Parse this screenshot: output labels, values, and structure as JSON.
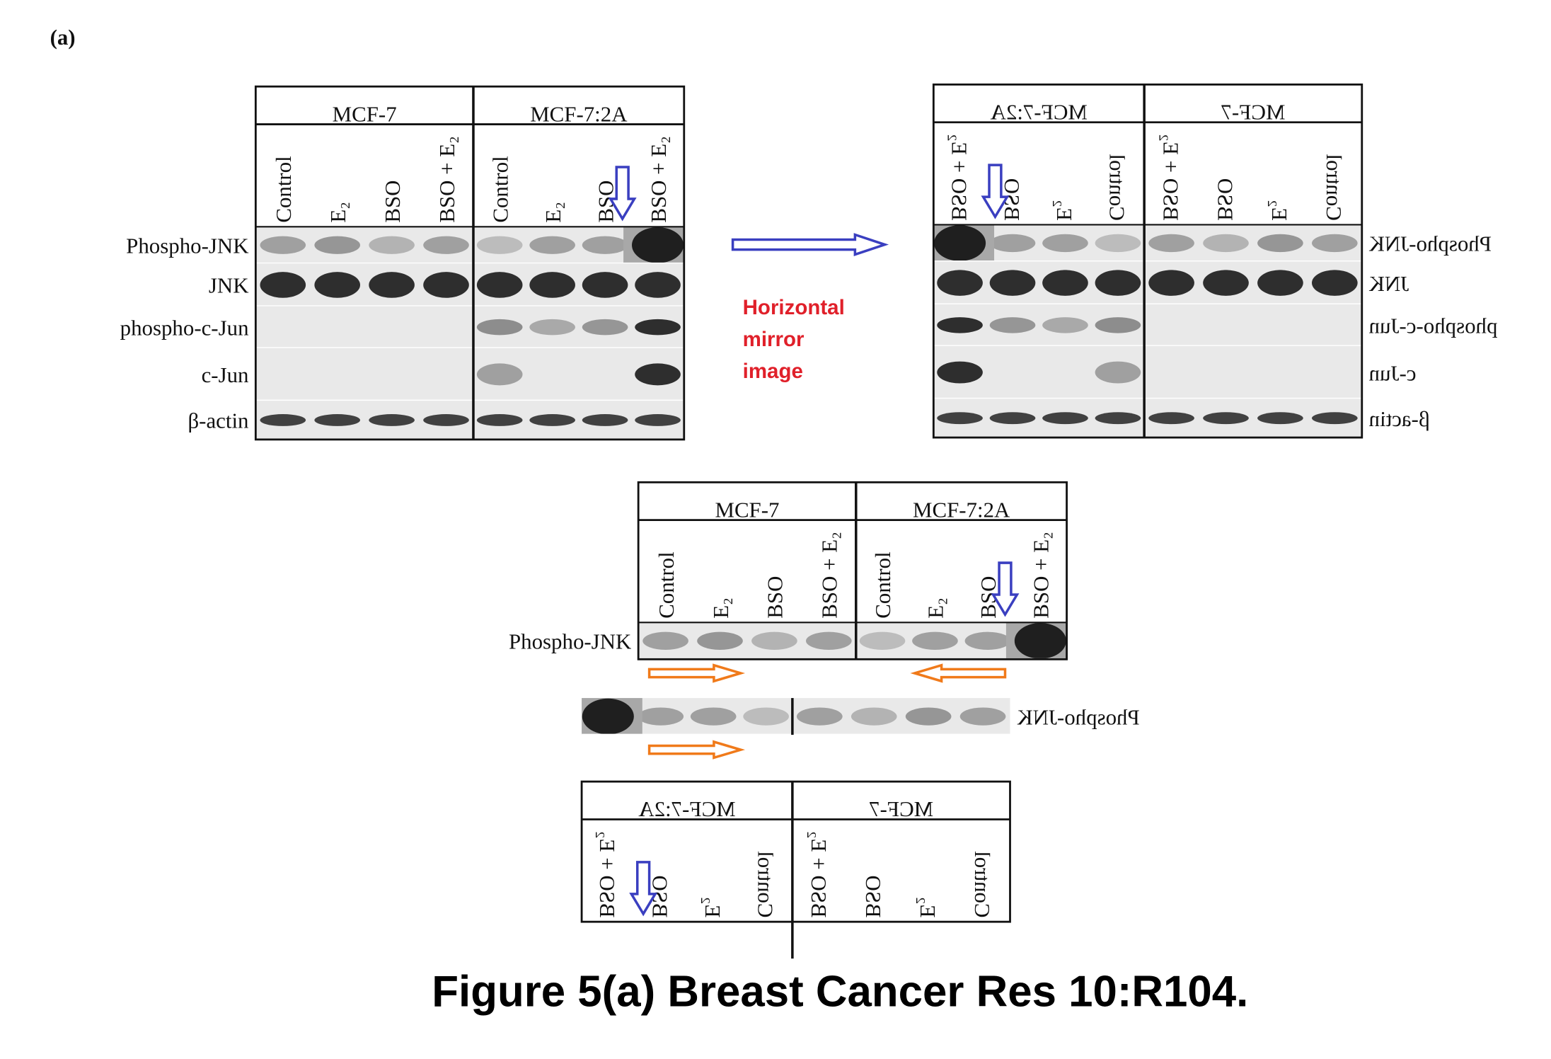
{
  "figure_label": "(a)",
  "panel": {
    "groups": [
      "MCF-7",
      "MCF-7:2A"
    ],
    "lanes": [
      "Control",
      "E₂",
      "BSO",
      "BSO + E₂"
    ],
    "rows": [
      "Phospho-JNK",
      "JNK",
      "phospho-c-Jun",
      "c-Jun",
      "β-actin"
    ]
  },
  "annotation": [
    "Horizontal",
    "mirror",
    "image"
  ],
  "caption": "Figure 5(a) Breast Cancer Res 10:R104."
}
